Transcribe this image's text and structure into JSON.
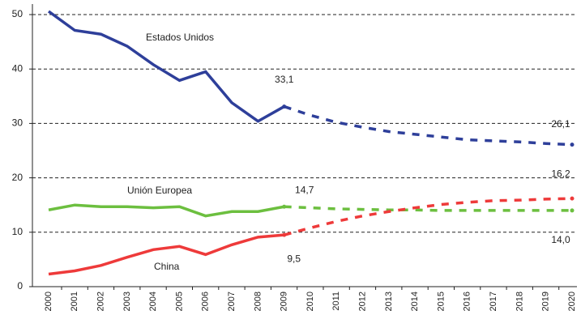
{
  "chart_data": {
    "type": "line",
    "categories": [
      "2000",
      "2001",
      "2002",
      "2003",
      "2004",
      "2005",
      "2006",
      "2007",
      "2008",
      "2009",
      "2010",
      "2011",
      "2012",
      "2013",
      "2014",
      "2015",
      "2016",
      "2017",
      "2018",
      "2019",
      "2020"
    ],
    "projection_start": "2009",
    "series": [
      {
        "name": "Estados Unidos",
        "color": "#2e3f9a",
        "values": [
          50.6,
          47.1,
          46.4,
          44.2,
          40.8,
          37.9,
          39.5,
          33.8,
          30.4,
          33.1,
          31.5,
          30.2,
          29.3,
          28.5,
          28.0,
          27.5,
          27.0,
          26.8,
          26.6,
          26.3,
          26.1
        ],
        "value_labels": [
          null,
          null,
          null,
          null,
          null,
          null,
          null,
          null,
          null,
          "33,1",
          null,
          null,
          null,
          null,
          null,
          null,
          null,
          null,
          null,
          null,
          "26,1"
        ]
      },
      {
        "name": "Unión Europea",
        "color": "#6cbf3f",
        "values": [
          14.1,
          15.0,
          14.7,
          14.7,
          14.5,
          14.7,
          13.0,
          13.8,
          13.8,
          14.7,
          14.5,
          14.3,
          14.2,
          14.1,
          14.1,
          14.0,
          14.0,
          14.0,
          14.0,
          14.0,
          14.0
        ],
        "value_labels": [
          null,
          null,
          null,
          null,
          null,
          null,
          null,
          null,
          null,
          "14,7",
          null,
          null,
          null,
          null,
          null,
          null,
          null,
          null,
          null,
          null,
          "14,0"
        ]
      },
      {
        "name": "China",
        "color": "#ee3a3a",
        "values": [
          2.3,
          2.9,
          3.9,
          5.4,
          6.8,
          7.4,
          5.9,
          7.7,
          9.1,
          9.5,
          10.8,
          12.0,
          13.0,
          13.8,
          14.5,
          15.1,
          15.5,
          15.8,
          15.9,
          16.1,
          16.2
        ],
        "value_labels": [
          null,
          null,
          null,
          null,
          null,
          null,
          null,
          null,
          null,
          "9,5",
          null,
          null,
          null,
          null,
          null,
          null,
          null,
          null,
          null,
          null,
          "16,2"
        ]
      }
    ],
    "ylim": [
      0,
      51
    ],
    "yticks": [
      0,
      10,
      20,
      30,
      40,
      50
    ],
    "grid": true
  }
}
